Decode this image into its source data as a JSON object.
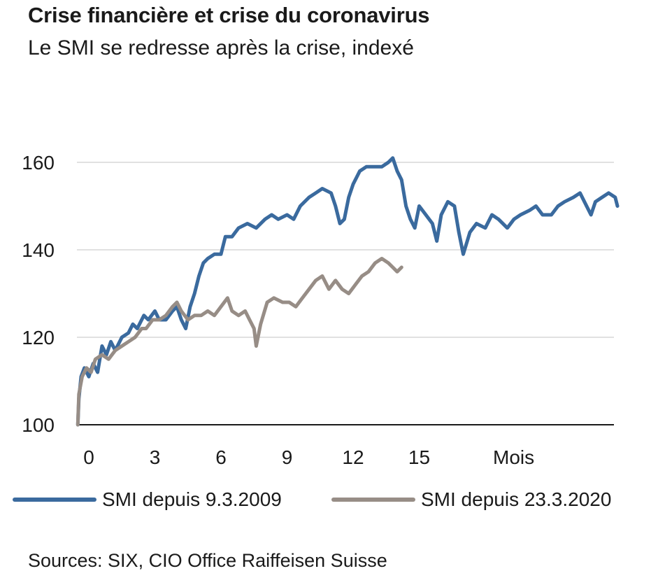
{
  "title": "Crise financière et crise du coronavirus",
  "subtitle": "Le SMI se redresse après la crise, indexé",
  "source": "Sources: SIX, CIO Office Raiffeisen Suisse",
  "chart_data": {
    "type": "line",
    "xlabel": "Mois",
    "ylabel": "",
    "xlim": [
      -0.5,
      24
    ],
    "ylim": [
      100,
      162
    ],
    "x_ticks": [
      0,
      3,
      6,
      9,
      12,
      15
    ],
    "x_tick_labels": [
      "0",
      "3",
      "6",
      "9",
      "12",
      "15"
    ],
    "y_ticks": [
      100,
      120,
      140,
      160
    ],
    "y_tick_labels": [
      "100",
      "120",
      "140",
      "160"
    ],
    "grid": "horizontal",
    "legend_position": "bottom",
    "series": [
      {
        "name": "SMI depuis 9.3.2009",
        "color": "#3a6a9e",
        "points": [
          [
            -0.5,
            100
          ],
          [
            -0.45,
            106
          ],
          [
            -0.35,
            111
          ],
          [
            -0.2,
            113
          ],
          [
            0,
            111
          ],
          [
            0.2,
            114
          ],
          [
            0.4,
            112
          ],
          [
            0.6,
            118
          ],
          [
            0.8,
            116
          ],
          [
            1.0,
            119
          ],
          [
            1.2,
            117
          ],
          [
            1.5,
            120
          ],
          [
            1.8,
            121
          ],
          [
            2.0,
            123
          ],
          [
            2.2,
            122
          ],
          [
            2.5,
            125
          ],
          [
            2.7,
            124
          ],
          [
            3.0,
            126
          ],
          [
            3.2,
            124
          ],
          [
            3.5,
            124
          ],
          [
            3.8,
            126
          ],
          [
            4.0,
            127
          ],
          [
            4.2,
            124
          ],
          [
            4.4,
            122
          ],
          [
            4.6,
            127
          ],
          [
            4.8,
            130
          ],
          [
            5.0,
            134
          ],
          [
            5.2,
            137
          ],
          [
            5.4,
            138
          ],
          [
            5.7,
            139
          ],
          [
            6.0,
            139
          ],
          [
            6.2,
            143
          ],
          [
            6.5,
            143
          ],
          [
            6.8,
            145
          ],
          [
            7.2,
            146
          ],
          [
            7.6,
            145
          ],
          [
            8.0,
            147
          ],
          [
            8.3,
            148
          ],
          [
            8.6,
            147
          ],
          [
            9.0,
            148
          ],
          [
            9.3,
            147
          ],
          [
            9.6,
            150
          ],
          [
            10.0,
            152
          ],
          [
            10.3,
            153
          ],
          [
            10.6,
            154
          ],
          [
            11.0,
            153
          ],
          [
            11.2,
            150
          ],
          [
            11.4,
            146
          ],
          [
            11.6,
            147
          ],
          [
            11.8,
            152
          ],
          [
            12.0,
            155
          ],
          [
            12.3,
            158
          ],
          [
            12.6,
            159
          ],
          [
            13.0,
            159
          ],
          [
            13.3,
            159
          ],
          [
            13.6,
            160
          ],
          [
            13.8,
            161
          ],
          [
            14.0,
            158
          ],
          [
            14.2,
            156
          ],
          [
            14.4,
            150
          ],
          [
            14.6,
            147
          ],
          [
            14.8,
            145
          ],
          [
            15.0,
            150
          ],
          [
            15.3,
            148
          ],
          [
            15.6,
            146
          ],
          [
            15.8,
            142
          ],
          [
            16.0,
            148
          ],
          [
            16.3,
            151
          ],
          [
            16.6,
            150
          ],
          [
            16.8,
            144
          ],
          [
            17.0,
            139
          ],
          [
            17.3,
            144
          ],
          [
            17.6,
            146
          ],
          [
            18.0,
            145
          ],
          [
            18.3,
            148
          ],
          [
            18.6,
            147
          ],
          [
            19.0,
            145
          ],
          [
            19.3,
            147
          ],
          [
            19.6,
            148
          ],
          [
            20.0,
            149
          ],
          [
            20.3,
            150
          ],
          [
            20.6,
            148
          ],
          [
            21.0,
            148
          ],
          [
            21.3,
            150
          ],
          [
            21.6,
            151
          ],
          [
            22.0,
            152
          ],
          [
            22.3,
            153
          ],
          [
            22.6,
            150
          ],
          [
            22.8,
            148
          ],
          [
            23.0,
            151
          ],
          [
            23.3,
            152
          ],
          [
            23.6,
            153
          ],
          [
            23.9,
            152
          ],
          [
            24.0,
            150
          ]
        ]
      },
      {
        "name": "SMI depuis 23.3.2020",
        "color": "#978d86",
        "points": [
          [
            -0.5,
            100
          ],
          [
            -0.45,
            107
          ],
          [
            -0.3,
            111
          ],
          [
            -0.1,
            113
          ],
          [
            0.1,
            112
          ],
          [
            0.3,
            115
          ],
          [
            0.6,
            116
          ],
          [
            0.9,
            115
          ],
          [
            1.2,
            117
          ],
          [
            1.5,
            118
          ],
          [
            1.8,
            119
          ],
          [
            2.1,
            120
          ],
          [
            2.4,
            122
          ],
          [
            2.6,
            122
          ],
          [
            2.9,
            124
          ],
          [
            3.2,
            124
          ],
          [
            3.5,
            125
          ],
          [
            3.8,
            127
          ],
          [
            4.0,
            128
          ],
          [
            4.2,
            126
          ],
          [
            4.5,
            124
          ],
          [
            4.8,
            125
          ],
          [
            5.1,
            125
          ],
          [
            5.4,
            126
          ],
          [
            5.7,
            125
          ],
          [
            6.0,
            127
          ],
          [
            6.3,
            129
          ],
          [
            6.5,
            126
          ],
          [
            6.8,
            125
          ],
          [
            7.1,
            126
          ],
          [
            7.3,
            124
          ],
          [
            7.5,
            122
          ],
          [
            7.6,
            118
          ],
          [
            7.8,
            123
          ],
          [
            8.1,
            128
          ],
          [
            8.4,
            129
          ],
          [
            8.8,
            128
          ],
          [
            9.1,
            128
          ],
          [
            9.4,
            127
          ],
          [
            9.7,
            129
          ],
          [
            10.0,
            131
          ],
          [
            10.3,
            133
          ],
          [
            10.6,
            134
          ],
          [
            10.9,
            131
          ],
          [
            11.2,
            133
          ],
          [
            11.5,
            131
          ],
          [
            11.8,
            130
          ],
          [
            12.1,
            132
          ],
          [
            12.4,
            134
          ],
          [
            12.7,
            135
          ],
          [
            13.0,
            137
          ],
          [
            13.3,
            138
          ],
          [
            13.6,
            137
          ],
          [
            13.8,
            136
          ],
          [
            14.0,
            135
          ],
          [
            14.2,
            136
          ]
        ]
      }
    ]
  }
}
